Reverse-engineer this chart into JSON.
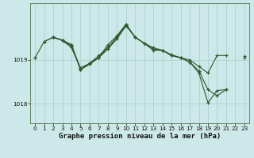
{
  "bg_color": "#cce8e8",
  "grid_color": "#aacccc",
  "line_color": "#2d5a2d",
  "xlabel": "Graphe pression niveau de la mer (hPa)",
  "xlabel_fontsize": 6.5,
  "tick_fontsize": 5.2,
  "ylabel_ticks": [
    1018.0,
    1019.0
  ],
  "ylim": [
    1017.55,
    1020.3
  ],
  "xlim": [
    -0.5,
    23.5
  ],
  "xticks": [
    0,
    1,
    2,
    3,
    4,
    5,
    6,
    7,
    8,
    9,
    10,
    11,
    12,
    13,
    14,
    15,
    16,
    17,
    18,
    19,
    20,
    21,
    22,
    23
  ],
  "lines": [
    [
      1019.05,
      1019.42,
      1019.52,
      1019.45,
      1019.28,
      1018.82,
      1018.92,
      1019.1,
      1019.28,
      1019.52,
      1019.8,
      1019.52,
      1019.38,
      1019.28,
      1019.22,
      1019.12,
      1019.05,
      1019.0,
      1018.85,
      1018.7,
      1019.1,
      1019.1,
      null,
      null
    ],
    [
      null,
      1019.42,
      1019.52,
      1019.45,
      1019.32,
      1018.78,
      1018.9,
      1019.05,
      1019.28,
      1019.52,
      1019.82,
      1019.52,
      1019.38,
      1019.25,
      1019.22,
      1019.1,
      1019.05,
      1018.95,
      1018.7,
      1018.02,
      1018.3,
      1018.32,
      null,
      1019.08
    ],
    [
      null,
      null,
      1019.52,
      1019.45,
      1019.35,
      1018.78,
      1018.92,
      1019.05,
      1019.35,
      1019.55,
      1019.82,
      null,
      null,
      null,
      null,
      null,
      null,
      null,
      null,
      null,
      null,
      null,
      null,
      null
    ],
    [
      1019.05,
      null,
      1019.52,
      1019.45,
      1019.35,
      1018.78,
      1018.92,
      1019.05,
      1019.25,
      1019.48,
      1019.78,
      1019.52,
      1019.38,
      1019.22,
      1019.22,
      1019.1,
      1019.05,
      1018.95,
      1018.75,
      1018.32,
      1018.18,
      1018.32,
      null,
      1019.05
    ]
  ]
}
